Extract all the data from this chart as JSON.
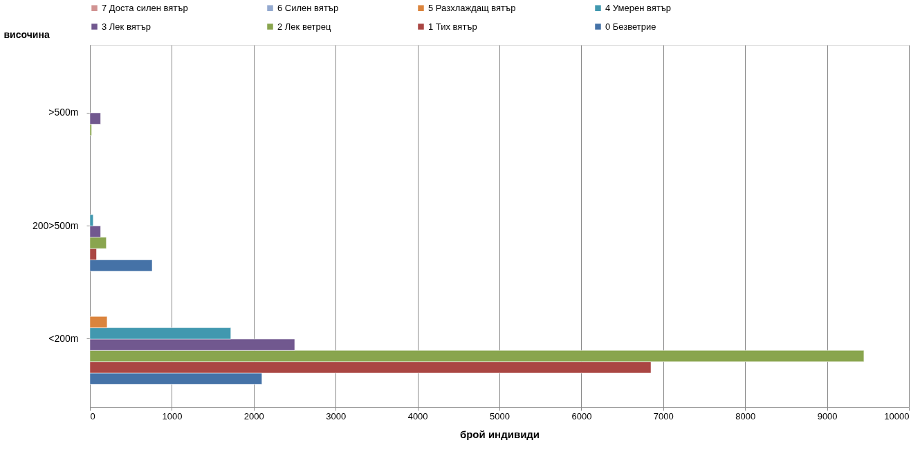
{
  "chart_data": {
    "type": "bar",
    "orientation": "horizontal",
    "xlabel": "брой индивиди",
    "ylabel": "височина",
    "categories": [
      ">500m",
      "200>500m",
      "<200m"
    ],
    "series": [
      {
        "name": "0 Безветрие",
        "color": "#4572a7",
        "values": [
          null,
          760,
          2100
        ]
      },
      {
        "name": "1 Тих вятър",
        "color": "#aa4643",
        "values": [
          null,
          80,
          6850
        ]
      },
      {
        "name": "2 Лек ветрец",
        "color": "#89a54e",
        "values": [
          20,
          200,
          9450
        ]
      },
      {
        "name": "3 Лек вятър",
        "color": "#71588f",
        "values": [
          130,
          130,
          2500
        ]
      },
      {
        "name": "4 Умерен вятър",
        "color": "#4198af",
        "values": [
          null,
          40,
          1720
        ]
      },
      {
        "name": "5 Разхлаждащ вятър",
        "color": "#db843d",
        "values": [
          null,
          null,
          210
        ]
      },
      {
        "name": "6 Силен вятър",
        "color": "#93a9cf",
        "values": [
          null,
          null,
          null
        ]
      },
      {
        "name": "7 Доста силен вятър",
        "color": "#d19392",
        "values": [
          null,
          null,
          null
        ]
      }
    ],
    "xlim": [
      0,
      10000
    ],
    "xticks": [
      0,
      1000,
      2000,
      3000,
      4000,
      5000,
      6000,
      7000,
      8000,
      9000,
      10000
    ],
    "grid": "x",
    "legend": "top"
  }
}
